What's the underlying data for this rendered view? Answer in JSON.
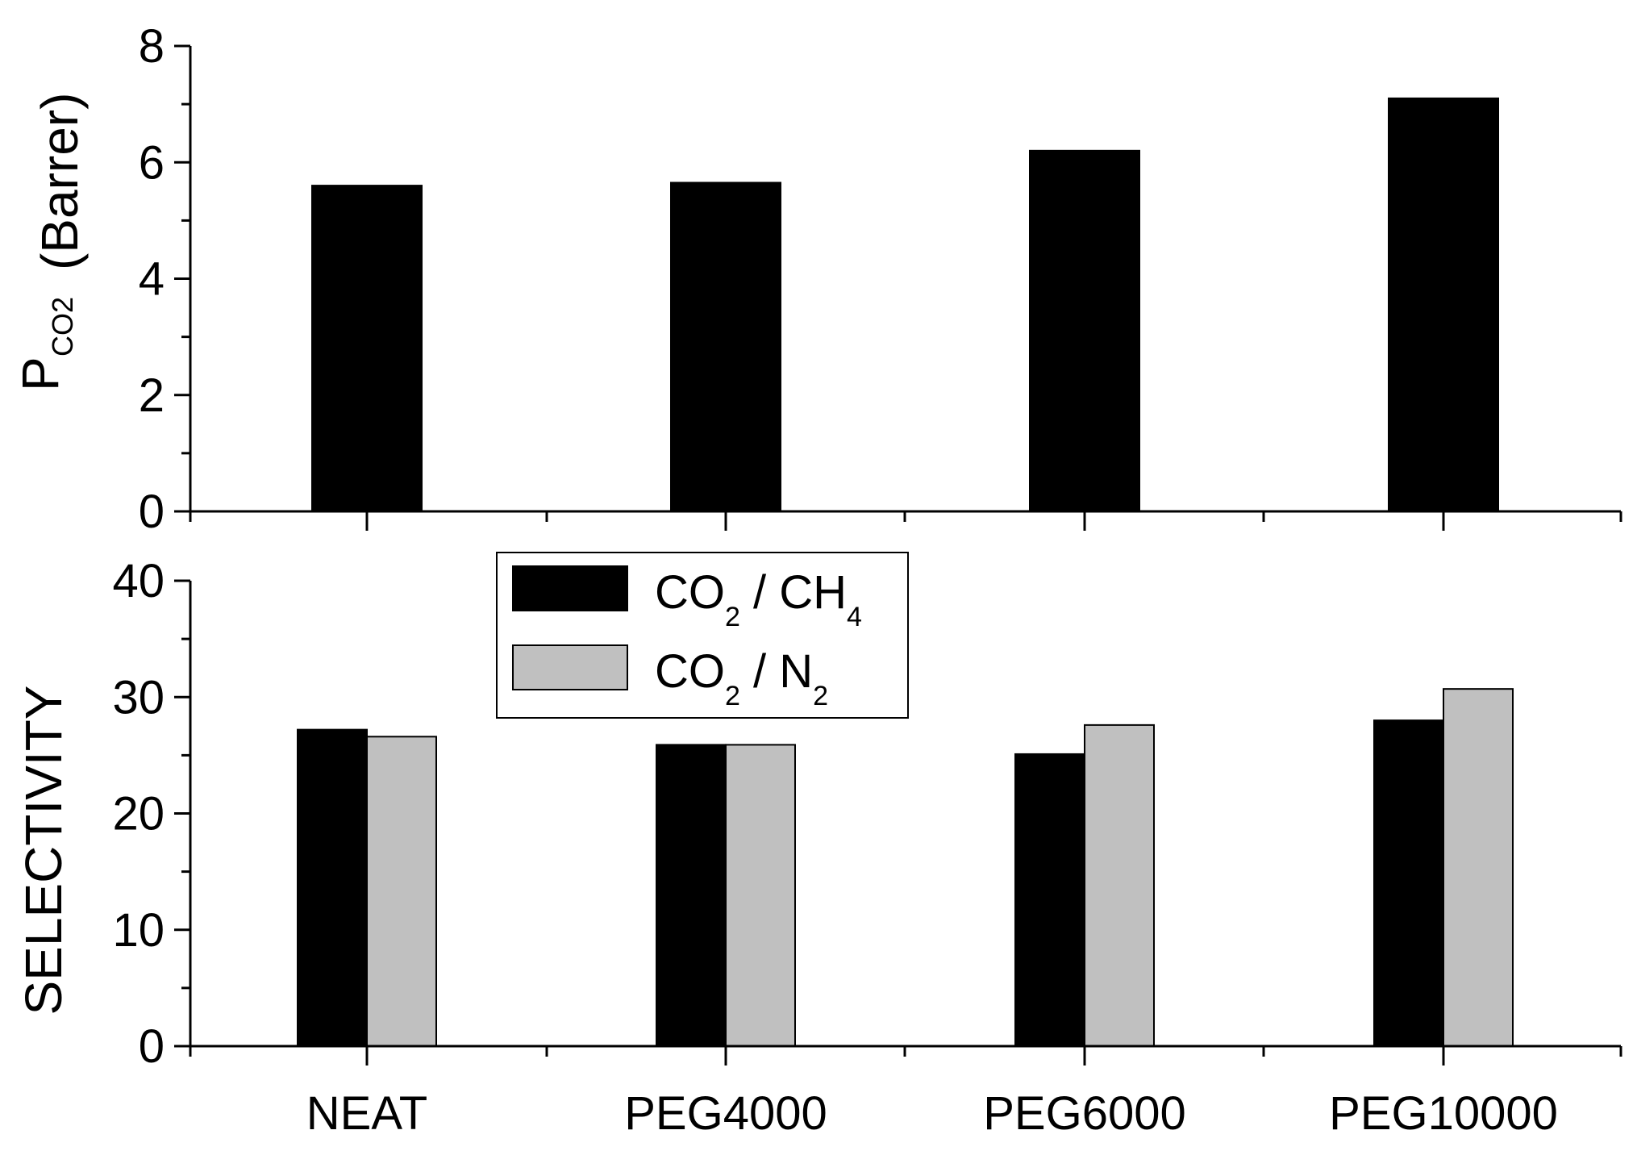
{
  "chart_data": [
    {
      "type": "bar",
      "panel": "top",
      "categories": [
        "NEAT",
        "PEG4000",
        "PEG6000",
        "PEG10000"
      ],
      "series": [
        {
          "name": "P_CO2",
          "values": [
            5.6,
            5.65,
            6.2,
            7.1
          ]
        }
      ],
      "ylabel": {
        "main": "P",
        "sub": "CO2",
        "unit": "(Barrer)"
      },
      "ylim": [
        0,
        8
      ],
      "yticks": [
        "0",
        "2",
        "4",
        "6",
        "8"
      ],
      "legend": "none"
    },
    {
      "type": "bar",
      "panel": "bottom",
      "categories": [
        "NEAT",
        "PEG4000",
        "PEG6000",
        "PEG10000"
      ],
      "series": [
        {
          "name": "CO2 / CH4",
          "values": [
            27.2,
            25.9,
            25.1,
            28.0
          ]
        },
        {
          "name": "CO2 / N2",
          "values": [
            26.6,
            25.9,
            27.6,
            30.7
          ]
        }
      ],
      "ylabel": "SELECTIVITY",
      "ylim": [
        0,
        40
      ],
      "yticks": [
        "0",
        "10",
        "20",
        "30",
        "40"
      ],
      "legend": "top-left",
      "legend_entries": [
        {
          "a": "CO",
          "a_sub": "2",
          "mid": " / CH",
          "b_sub": "4"
        },
        {
          "a": "CO",
          "a_sub": "2",
          "mid": " / N",
          "b_sub": "2"
        }
      ]
    }
  ],
  "colors": {
    "series1": "#000000",
    "series2": "#c0c0c0",
    "axis": "#000000"
  }
}
